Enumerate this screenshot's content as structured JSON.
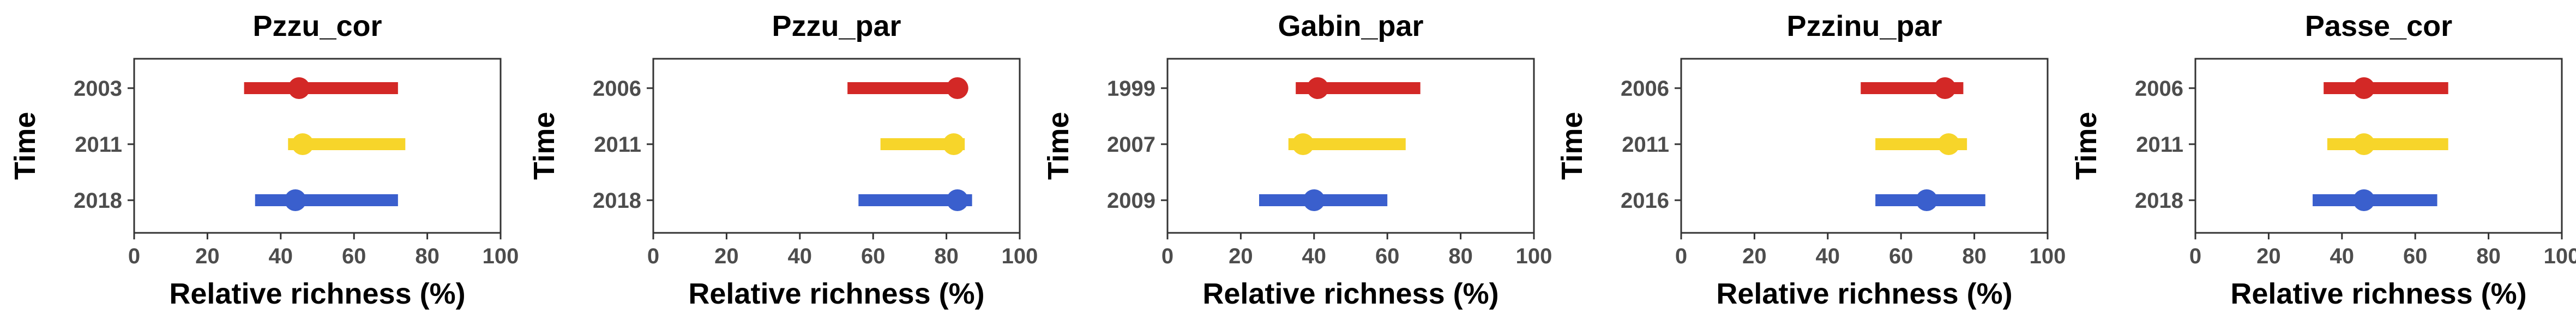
{
  "chart_data": [
    {
      "type": "range",
      "title": "Pzzu_cor",
      "xlabel": "Relative richness (%)",
      "ylabel": "Time",
      "xlim": [
        0,
        100
      ],
      "xticks": [
        0,
        20,
        40,
        60,
        80,
        100
      ],
      "grid": false,
      "series": [
        {
          "category": "2003",
          "color": "#d32826",
          "low": 30,
          "high": 72,
          "point": 45
        },
        {
          "category": "2011",
          "color": "#f7d52a",
          "low": 42,
          "high": 74,
          "point": 46
        },
        {
          "category": "2018",
          "color": "#3a5fcd",
          "low": 33,
          "high": 72,
          "point": 44
        }
      ]
    },
    {
      "type": "range",
      "title": "Pzzu_par",
      "xlabel": "Relative richness (%)",
      "ylabel": "Time",
      "xlim": [
        0,
        100
      ],
      "xticks": [
        0,
        20,
        40,
        60,
        80,
        100
      ],
      "grid": false,
      "series": [
        {
          "category": "2006",
          "color": "#d32826",
          "low": 53,
          "high": 84,
          "point": 83
        },
        {
          "category": "2011",
          "color": "#f7d52a",
          "low": 62,
          "high": 85,
          "point": 82
        },
        {
          "category": "2018",
          "color": "#3a5fcd",
          "low": 56,
          "high": 87,
          "point": 83
        }
      ]
    },
    {
      "type": "range",
      "title": "Gabin_par",
      "xlabel": "Relative richness (%)",
      "ylabel": "Time",
      "xlim": [
        0,
        100
      ],
      "xticks": [
        0,
        20,
        40,
        60,
        80,
        100
      ],
      "grid": false,
      "series": [
        {
          "category": "1999",
          "color": "#d32826",
          "low": 35,
          "high": 69,
          "point": 41
        },
        {
          "category": "2007",
          "color": "#f7d52a",
          "low": 33,
          "high": 65,
          "point": 37
        },
        {
          "category": "2009",
          "color": "#3a5fcd",
          "low": 25,
          "high": 60,
          "point": 40
        }
      ]
    },
    {
      "type": "range",
      "title": "Pzzinu_par",
      "xlabel": "Relative richness (%)",
      "ylabel": "Time",
      "xlim": [
        0,
        100
      ],
      "xticks": [
        0,
        20,
        40,
        60,
        80,
        100
      ],
      "grid": false,
      "series": [
        {
          "category": "2006",
          "color": "#d32826",
          "low": 49,
          "high": 77,
          "point": 72
        },
        {
          "category": "2011",
          "color": "#f7d52a",
          "low": 53,
          "high": 78,
          "point": 73
        },
        {
          "category": "2016",
          "color": "#3a5fcd",
          "low": 53,
          "high": 83,
          "point": 67
        }
      ]
    },
    {
      "type": "range",
      "title": "Passe_cor",
      "xlabel": "Relative richness (%)",
      "ylabel": "Time",
      "xlim": [
        0,
        100
      ],
      "xticks": [
        0,
        20,
        40,
        60,
        80,
        100
      ],
      "grid": false,
      "series": [
        {
          "category": "2006",
          "color": "#d32826",
          "low": 35,
          "high": 69,
          "point": 46
        },
        {
          "category": "2011",
          "color": "#f7d52a",
          "low": 36,
          "high": 69,
          "point": 46
        },
        {
          "category": "2018",
          "color": "#3a5fcd",
          "low": 32,
          "high": 66,
          "point": 46
        }
      ]
    }
  ]
}
